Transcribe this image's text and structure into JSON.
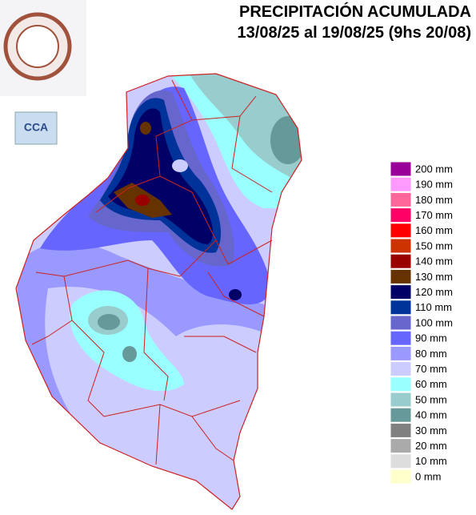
{
  "header": {
    "title": "PRECIPITACIÓN ACUMULADA",
    "subtitle": "13/08/25 al 19/08/25 (9hs 20/08)"
  },
  "logo": {
    "label": "CCA"
  },
  "legend": {
    "items": [
      {
        "label": "200 mm",
        "color": "#990099"
      },
      {
        "label": "190 mm",
        "color": "#ff99ff"
      },
      {
        "label": "180 mm",
        "color": "#ff6699"
      },
      {
        "label": "170 mm",
        "color": "#ff0066"
      },
      {
        "label": "160 mm",
        "color": "#ff0000"
      },
      {
        "label": "150 mm",
        "color": "#cc3300"
      },
      {
        "label": "140 mm",
        "color": "#990000"
      },
      {
        "label": "130 mm",
        "color": "#663300"
      },
      {
        "label": "120 mm",
        "color": "#000066"
      },
      {
        "label": "110 mm",
        "color": "#003399"
      },
      {
        "label": "100 mm",
        "color": "#6666cc"
      },
      {
        "label": "90 mm",
        "color": "#6666ff"
      },
      {
        "label": "80 mm",
        "color": "#9999ff"
      },
      {
        "label": "70 mm",
        "color": "#ccccff"
      },
      {
        "label": "60 mm",
        "color": "#99ffff"
      },
      {
        "label": "50 mm",
        "color": "#99cccc"
      },
      {
        "label": "40 mm",
        "color": "#669999"
      },
      {
        "label": "30 mm",
        "color": "#808080"
      },
      {
        "label": "20 mm",
        "color": "#aaaaaa"
      },
      {
        "label": "10 mm",
        "color": "#dddddd"
      },
      {
        "label": "0 mm",
        "color": "#ffffcc"
      }
    ]
  }
}
